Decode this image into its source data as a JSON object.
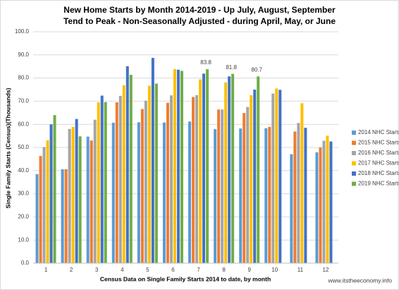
{
  "chart_data": {
    "type": "bar",
    "title": [
      "New Home Starts by Month 2014-2019 - Up July, August, September",
      "Tend to Peak - Non-Seasonally Adjusted - during April, May, or June"
    ],
    "x_label": "Census Data on Single Family Starts 2014 to date, by month",
    "y_label": "Single Family Starts (Census)(Thousands)",
    "source": "www.itstheeconomy.info",
    "categories": [
      "1",
      "2",
      "3",
      "4",
      "5",
      "6",
      "7",
      "8",
      "9",
      "10",
      "11",
      "12"
    ],
    "series": [
      {
        "name": "2014 NHC Starts",
        "color": "#5b9bd5",
        "values": [
          38.5,
          40.6,
          54.7,
          60.7,
          60.9,
          60.8,
          61.2,
          57.9,
          58.2,
          58.3,
          47.1,
          47.9
        ]
      },
      {
        "name": "2015 NHC Starts",
        "color": "#ed7d31",
        "values": [
          46.3,
          40.6,
          53.0,
          69.5,
          66.6,
          69.3,
          71.8,
          66.4,
          64.9,
          58.9,
          56.9,
          50.0
        ]
      },
      {
        "name": "2016 NHC Starts",
        "color": "#a5a5a5",
        "values": [
          50.2,
          58.0,
          62.0,
          72.3,
          70.2,
          72.5,
          72.6,
          66.4,
          67.5,
          73.3,
          60.6,
          52.9
        ]
      },
      {
        "name": "2017 NHC Starts",
        "color": "#ffc000",
        "values": [
          53.1,
          58.9,
          69.5,
          76.9,
          76.7,
          83.9,
          79.4,
          78.1,
          72.6,
          75.5,
          69.1,
          55.1
        ]
      },
      {
        "name": "2018 NHC Starts",
        "color": "#4472c4",
        "values": [
          60.0,
          62.3,
          72.4,
          85.1,
          88.7,
          83.6,
          81.9,
          80.7,
          75.0,
          74.9,
          58.5,
          52.6
        ]
      },
      {
        "name": "2019 NHC Starts",
        "color": "#70ad47",
        "values": [
          64.0,
          54.8,
          69.6,
          81.4,
          77.6,
          83.1,
          83.8,
          81.8,
          80.7,
          null,
          null,
          null
        ],
        "value_labels": [
          null,
          null,
          null,
          null,
          null,
          null,
          "83.8",
          "81.8",
          "80.7",
          null,
          null,
          null
        ]
      }
    ],
    "ylim": [
      0,
      100
    ],
    "yticks": [
      {
        "value": 0,
        "label": "0.0"
      },
      {
        "value": 10,
        "label": "10.0"
      },
      {
        "value": 20,
        "label": "20.0"
      },
      {
        "value": 30,
        "label": "30.0"
      },
      {
        "value": 40,
        "label": "40.0"
      },
      {
        "value": 50,
        "label": "50.0"
      },
      {
        "value": 60,
        "label": "60.0"
      },
      {
        "value": 70,
        "label": "70.0"
      },
      {
        "value": 80,
        "label": "80.0"
      },
      {
        "value": 90,
        "label": "90.0"
      },
      {
        "value": 100,
        "label": "100.0"
      }
    ],
    "grid": true,
    "legend": "right"
  }
}
